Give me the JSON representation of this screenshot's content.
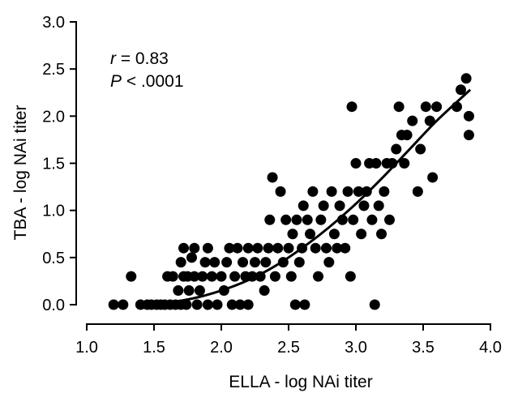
{
  "chart_data": {
    "type": "scatter",
    "xlabel": "ELLA - log NAi titer",
    "ylabel": "TBA - log NAi titer",
    "xlim": [
      1.0,
      4.0
    ],
    "ylim": [
      0.0,
      3.0
    ],
    "xticks": [
      "1.0",
      "1.5",
      "2.0",
      "2.5",
      "3.0",
      "3.5",
      "4.0"
    ],
    "yticks": [
      "0.0",
      "0.5",
      "1.0",
      "1.5",
      "2.0",
      "2.5",
      "3.0"
    ],
    "annotation": {
      "r_symbol": "r",
      "r_value": " = 0.83",
      "p_symbol": "P",
      "p_value": " < .0001"
    },
    "marker_color": "#000000",
    "grid": false,
    "fit_curve": {
      "x": [
        1.45,
        1.6,
        1.8,
        2.0,
        2.2,
        2.4,
        2.6,
        2.8,
        3.0,
        3.2,
        3.4,
        3.6,
        3.85
      ],
      "y": [
        0.0,
        0.02,
        0.07,
        0.15,
        0.26,
        0.41,
        0.6,
        0.82,
        1.07,
        1.35,
        1.65,
        1.95,
        2.28
      ]
    },
    "points": [
      {
        "x": 1.2,
        "y": 0.0
      },
      {
        "x": 1.27,
        "y": 0.0
      },
      {
        "x": 1.33,
        "y": 0.3
      },
      {
        "x": 1.4,
        "y": 0.0
      },
      {
        "x": 1.45,
        "y": 0.0
      },
      {
        "x": 1.48,
        "y": 0.0
      },
      {
        "x": 1.52,
        "y": 0.0
      },
      {
        "x": 1.55,
        "y": 0.0
      },
      {
        "x": 1.58,
        "y": 0.0
      },
      {
        "x": 1.6,
        "y": 0.3
      },
      {
        "x": 1.62,
        "y": 0.0
      },
      {
        "x": 1.64,
        "y": 0.3
      },
      {
        "x": 1.66,
        "y": 0.0
      },
      {
        "x": 1.68,
        "y": 0.15
      },
      {
        "x": 1.7,
        "y": 0.0
      },
      {
        "x": 1.7,
        "y": 0.45
      },
      {
        "x": 1.72,
        "y": 0.6
      },
      {
        "x": 1.72,
        "y": 0.3
      },
      {
        "x": 1.74,
        "y": 0.0
      },
      {
        "x": 1.75,
        "y": 0.3
      },
      {
        "x": 1.76,
        "y": 0.15
      },
      {
        "x": 1.78,
        "y": 0.5
      },
      {
        "x": 1.8,
        "y": 0.6
      },
      {
        "x": 1.8,
        "y": 0.3
      },
      {
        "x": 1.82,
        "y": 0.0
      },
      {
        "x": 1.84,
        "y": 0.15
      },
      {
        "x": 1.86,
        "y": 0.3
      },
      {
        "x": 1.88,
        "y": 0.45
      },
      {
        "x": 1.9,
        "y": 0.6
      },
      {
        "x": 1.9,
        "y": 0.0
      },
      {
        "x": 1.93,
        "y": 0.3
      },
      {
        "x": 1.95,
        "y": 0.45
      },
      {
        "x": 1.97,
        "y": 0.0
      },
      {
        "x": 2.0,
        "y": 0.3
      },
      {
        "x": 2.02,
        "y": 0.15
      },
      {
        "x": 2.04,
        "y": 0.45
      },
      {
        "x": 2.06,
        "y": 0.6
      },
      {
        "x": 2.08,
        "y": 0.0
      },
      {
        "x": 2.1,
        "y": 0.3
      },
      {
        "x": 2.12,
        "y": 0.6
      },
      {
        "x": 2.14,
        "y": 0.0
      },
      {
        "x": 2.16,
        "y": 0.45
      },
      {
        "x": 2.18,
        "y": 0.3
      },
      {
        "x": 2.2,
        "y": 0.0
      },
      {
        "x": 2.2,
        "y": 0.6
      },
      {
        "x": 2.23,
        "y": 0.3
      },
      {
        "x": 2.25,
        "y": 0.45
      },
      {
        "x": 2.27,
        "y": 0.6
      },
      {
        "x": 2.29,
        "y": 0.3
      },
      {
        "x": 2.32,
        "y": 0.15
      },
      {
        "x": 2.33,
        "y": 0.45
      },
      {
        "x": 2.35,
        "y": 0.6
      },
      {
        "x": 2.36,
        "y": 0.9
      },
      {
        "x": 2.38,
        "y": 1.35
      },
      {
        "x": 2.4,
        "y": 0.3
      },
      {
        "x": 2.42,
        "y": 0.6
      },
      {
        "x": 2.44,
        "y": 1.2
      },
      {
        "x": 2.46,
        "y": 0.45
      },
      {
        "x": 2.48,
        "y": 0.9
      },
      {
        "x": 2.5,
        "y": 0.6
      },
      {
        "x": 2.52,
        "y": 0.3
      },
      {
        "x": 2.53,
        "y": 0.75
      },
      {
        "x": 2.55,
        "y": 0.0
      },
      {
        "x": 2.56,
        "y": 0.9
      },
      {
        "x": 2.58,
        "y": 0.45
      },
      {
        "x": 2.6,
        "y": 0.6
      },
      {
        "x": 2.61,
        "y": 1.05
      },
      {
        "x": 2.62,
        "y": 0.0
      },
      {
        "x": 2.64,
        "y": 0.9
      },
      {
        "x": 2.66,
        "y": 0.75
      },
      {
        "x": 2.68,
        "y": 1.2
      },
      {
        "x": 2.7,
        "y": 0.6
      },
      {
        "x": 2.72,
        "y": 0.3
      },
      {
        "x": 2.74,
        "y": 0.9
      },
      {
        "x": 2.76,
        "y": 1.05
      },
      {
        "x": 2.78,
        "y": 0.6
      },
      {
        "x": 2.8,
        "y": 0.45
      },
      {
        "x": 2.82,
        "y": 1.2
      },
      {
        "x": 2.84,
        "y": 0.75
      },
      {
        "x": 2.86,
        "y": 0.6
      },
      {
        "x": 2.88,
        "y": 1.05
      },
      {
        "x": 2.9,
        "y": 0.9
      },
      {
        "x": 2.92,
        "y": 0.6
      },
      {
        "x": 2.94,
        "y": 1.2
      },
      {
        "x": 2.96,
        "y": 0.3
      },
      {
        "x": 2.97,
        "y": 2.1
      },
      {
        "x": 2.98,
        "y": 0.9
      },
      {
        "x": 3.0,
        "y": 1.5
      },
      {
        "x": 3.02,
        "y": 1.2
      },
      {
        "x": 3.04,
        "y": 0.75
      },
      {
        "x": 3.06,
        "y": 1.05
      },
      {
        "x": 3.08,
        "y": 1.2
      },
      {
        "x": 3.1,
        "y": 1.5
      },
      {
        "x": 3.12,
        "y": 0.9
      },
      {
        "x": 3.14,
        "y": 0.0
      },
      {
        "x": 3.15,
        "y": 1.5
      },
      {
        "x": 3.17,
        "y": 1.05
      },
      {
        "x": 3.19,
        "y": 0.75
      },
      {
        "x": 3.21,
        "y": 1.2
      },
      {
        "x": 3.23,
        "y": 1.5
      },
      {
        "x": 3.25,
        "y": 0.9
      },
      {
        "x": 3.27,
        "y": 1.5
      },
      {
        "x": 3.3,
        "y": 1.65
      },
      {
        "x": 3.32,
        "y": 2.1
      },
      {
        "x": 3.34,
        "y": 1.8
      },
      {
        "x": 3.36,
        "y": 1.5
      },
      {
        "x": 3.38,
        "y": 1.8
      },
      {
        "x": 3.42,
        "y": 1.95
      },
      {
        "x": 3.46,
        "y": 1.2
      },
      {
        "x": 3.48,
        "y": 1.65
      },
      {
        "x": 3.52,
        "y": 2.1
      },
      {
        "x": 3.55,
        "y": 1.95
      },
      {
        "x": 3.57,
        "y": 1.35
      },
      {
        "x": 3.6,
        "y": 2.1
      },
      {
        "x": 3.75,
        "y": 2.1
      },
      {
        "x": 3.78,
        "y": 2.28
      },
      {
        "x": 3.82,
        "y": 2.4
      },
      {
        "x": 3.84,
        "y": 1.8
      },
      {
        "x": 3.84,
        "y": 2.0
      }
    ]
  }
}
